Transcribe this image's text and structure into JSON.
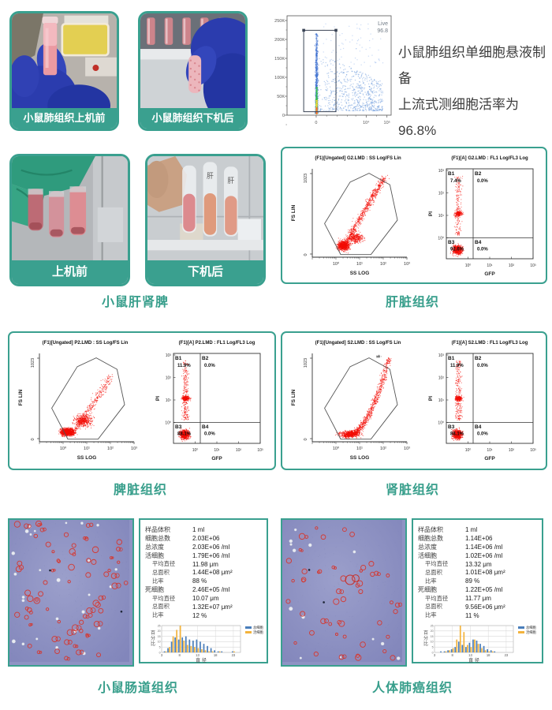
{
  "accent": "#3aa08f",
  "top": {
    "photos": [
      {
        "label": "小鼠肺组织上机前",
        "scene": "lung-before"
      },
      {
        "label": "小鼠肺组织下机后",
        "scene": "lung-after"
      }
    ],
    "description_lines": [
      "小鼠肺组织单细胞悬液制备",
      "上流式测细胞活率为96.8%"
    ]
  },
  "organ_photos": {
    "photos": [
      {
        "label": "上机前",
        "scene": "tubes-before"
      },
      {
        "label": "下机后",
        "scene": "tubes-after"
      }
    ],
    "caption": "小鼠肝肾脾"
  },
  "flow_captions": {
    "liver": "肝脏组织",
    "spleen": "脾脏组织",
    "kidney": "肾脏组织"
  },
  "micro_captions": {
    "intestine": "小鼠肠道组织",
    "lung_cancer": "人体肺癌组织"
  },
  "counter_panels": [
    {
      "id": "intestine",
      "rows": [
        {
          "label": "样品体积",
          "value": "1 ml",
          "indent": 0
        },
        {
          "label": "细胞总数",
          "value": "2.03E+06",
          "indent": 0
        },
        {
          "label": "总浓度",
          "value": "2.03E+06 /ml",
          "indent": 0
        },
        {
          "label": "活细胞",
          "value": "1.79E+06 /ml",
          "indent": 0
        },
        {
          "label": "平均直径",
          "value": "11.98 μm",
          "indent": 1
        },
        {
          "label": "总面积",
          "value": "1.44E+08 μm²",
          "indent": 1
        },
        {
          "label": "比率",
          "value": "88 %",
          "indent": 1
        },
        {
          "label": "死细胞",
          "value": "2.46E+05 /ml",
          "indent": 0
        },
        {
          "label": "平均直径",
          "value": "10.07 μm",
          "indent": 1
        },
        {
          "label": "总面积",
          "value": "1.32E+07 μm²",
          "indent": 1
        },
        {
          "label": "比率",
          "value": "12 %",
          "indent": 1
        }
      ]
    },
    {
      "id": "lung_cancer",
      "rows": [
        {
          "label": "样品体积",
          "value": "1 ml",
          "indent": 0
        },
        {
          "label": "细胞总数",
          "value": "1.14E+06",
          "indent": 0
        },
        {
          "label": "总浓度",
          "value": "1.14E+06 /ml",
          "indent": 0
        },
        {
          "label": "活细胞",
          "value": "1.02E+06 /ml",
          "indent": 0
        },
        {
          "label": "平均直径",
          "value": "13.32 μm",
          "indent": 1
        },
        {
          "label": "总面积",
          "value": "1.01E+08 μm²",
          "indent": 1
        },
        {
          "label": "比率",
          "value": "89 %",
          "indent": 1
        },
        {
          "label": "死细胞",
          "value": "1.22E+05 /ml",
          "indent": 0
        },
        {
          "label": "平均直径",
          "value": "11.77 μm",
          "indent": 1
        },
        {
          "label": "总面积",
          "value": "9.56E+06 μm²",
          "indent": 1
        },
        {
          "label": "比率",
          "value": "11 %",
          "indent": 1
        }
      ]
    }
  ],
  "micro_images": [
    {
      "id": "intestine",
      "red_cells": 74,
      "white_cells": 26,
      "big_cell": false,
      "seed": 11
    },
    {
      "id": "lung_cancer",
      "red_cells": 50,
      "white_cells": 13,
      "big_cell": true,
      "seed": 29
    }
  ],
  "chart_data": [
    {
      "id": "live_gate",
      "type": "scatter",
      "title": "Live 96.8",
      "gate_label": "Live",
      "gate_percent": "96.8",
      "yticks": [
        "250K",
        "200K",
        "150K",
        "100K",
        "50K",
        "0"
      ],
      "xticks": [
        "0",
        "10⁴",
        "10⁵"
      ],
      "gate_rect": [
        0.16,
        0.02,
        0.47,
        0.88
      ],
      "note": "density scatter of lung single-cell suspension, Live gate = 96.8%"
    },
    {
      "id": "liver",
      "type": "flow",
      "scatter_title": "(F1)[Ungated] G2.LMD : SS Log/FS Lin",
      "scatter_xlabel": "SS LOG",
      "scatter_ylabel": "FS LIN",
      "scatter_yticks": [
        "1023",
        "0"
      ],
      "scatter_xticks": [
        "10⁰",
        "10¹",
        "10²",
        "10³"
      ],
      "quad_title": "(F1)[A] G2.LMD : FL1 Log/FL3 Log",
      "quad_xlabel": "GFP",
      "quad_ylabel": "PI",
      "quad_xticks": [
        "10⁰",
        "10¹",
        "10²",
        "10³"
      ],
      "quad_yticks": [
        "10³",
        "10²",
        "10¹",
        "10⁰"
      ],
      "quadrants": [
        {
          "name": "B1",
          "value": "7.4%"
        },
        {
          "name": "B2",
          "value": "0.0%"
        },
        {
          "name": "B3",
          "value": "92.6%"
        },
        {
          "name": "B4",
          "value": "0.0%"
        }
      ],
      "gate_polygon": [
        [
          0.3,
          0.03
        ],
        [
          0.13,
          0.38
        ],
        [
          0.4,
          0.85
        ],
        [
          0.6,
          0.95
        ],
        [
          0.82,
          0.82
        ],
        [
          0.9,
          0.42
        ],
        [
          0.62,
          0.03
        ]
      ],
      "clusters": [
        {
          "n": 800,
          "cx": 0.33,
          "cy": 0.13,
          "sx": 0.085,
          "sy": 0.075
        },
        {
          "n": 350,
          "cx": 0.45,
          "cy": 0.22,
          "sx": 0.12,
          "sy": 0.09
        }
      ],
      "arm": {
        "n": 650,
        "x0": 0.33,
        "y0": 0.12,
        "dx": 0.43,
        "dy": 0.78,
        "pow": 1.0,
        "jx": 0.05,
        "jy": 0.05
      },
      "top_cluster": false,
      "b3_n": 700,
      "col_n": 180,
      "band_n": 220
    },
    {
      "id": "spleen",
      "type": "flow",
      "scatter_title": "(F1)[Ungated] P2.LMD : SS Log/FS Lin",
      "scatter_xlabel": "SS LOG",
      "scatter_ylabel": "FS LIN",
      "scatter_yticks": [
        "1023",
        "0"
      ],
      "scatter_xticks": [
        "10⁰",
        "10¹",
        "10²",
        "10³"
      ],
      "quad_title": "(F1)[A] P2.LMD : FL1 Log/FL3 Log",
      "quad_xlabel": "GFP",
      "quad_ylabel": "PI",
      "quad_xticks": [
        "10⁰",
        "10¹",
        "10²",
        "10³"
      ],
      "quad_yticks": [
        "10³",
        "10²",
        "10¹",
        "10⁰"
      ],
      "quadrants": [
        {
          "name": "B1",
          "value": "11.9%"
        },
        {
          "name": "B2",
          "value": "0.0%"
        },
        {
          "name": "B3",
          "value": "88.1%"
        },
        {
          "name": "B4",
          "value": "0.0%"
        }
      ],
      "gate_polygon": [
        [
          0.3,
          0.03
        ],
        [
          0.13,
          0.38
        ],
        [
          0.4,
          0.85
        ],
        [
          0.6,
          0.95
        ],
        [
          0.82,
          0.82
        ],
        [
          0.9,
          0.42
        ],
        [
          0.62,
          0.03
        ]
      ],
      "clusters": [
        {
          "n": 1200,
          "cx": 0.3,
          "cy": 0.11,
          "sx": 0.1,
          "sy": 0.06
        },
        {
          "n": 450,
          "cx": 0.46,
          "cy": 0.24,
          "sx": 0.13,
          "sy": 0.1
        }
      ],
      "arm": {
        "n": 300,
        "x0": 0.38,
        "y0": 0.15,
        "dx": 0.38,
        "dy": 0.6,
        "pow": 1.1,
        "jx": 0.06,
        "jy": 0.06
      },
      "top_cluster": false,
      "b3_n": 750,
      "col_n": 260,
      "band_n": 320
    },
    {
      "id": "kidney",
      "type": "flow",
      "scatter_title": "(F1)[Ungated] S2.LMD : SS Log/FS Lin",
      "scatter_xlabel": "SS LOG",
      "scatter_ylabel": "FS LIN",
      "scatter_yticks": [
        "1023",
        "0"
      ],
      "scatter_xticks": [
        "10⁰",
        "10¹",
        "10²",
        "10³"
      ],
      "quad_title": "(F1)[A] S2.LMD : FL1 Log/FL3 Log",
      "quad_xlabel": "GFP",
      "quad_ylabel": "PI",
      "quad_xticks": [
        "10⁰",
        "10¹",
        "10²",
        "10³"
      ],
      "quad_yticks": [
        "10³",
        "10²",
        "10¹",
        "10⁰"
      ],
      "quadrants": [
        {
          "name": "B1",
          "value": "11.9%"
        },
        {
          "name": "B2",
          "value": "0.0%"
        },
        {
          "name": "B3",
          "value": "88.1%"
        },
        {
          "name": "B4",
          "value": "0.0%"
        }
      ],
      "gate_polygon": [
        [
          0.3,
          0.03
        ],
        [
          0.13,
          0.38
        ],
        [
          0.4,
          0.85
        ],
        [
          0.6,
          0.95
        ],
        [
          0.82,
          0.82
        ],
        [
          0.9,
          0.42
        ],
        [
          0.62,
          0.03
        ]
      ],
      "clusters": [
        {
          "n": 500,
          "cx": 0.4,
          "cy": 0.09,
          "sx": 0.15,
          "sy": 0.05
        }
      ],
      "arm": {
        "n": 850,
        "x0": 0.34,
        "y0": 0.06,
        "dx": 0.47,
        "dy": 0.88,
        "pow": 2.1,
        "jx": 0.045,
        "jy": 0.04
      },
      "top_cluster": true,
      "b3_n": 700,
      "col_n": 240,
      "band_n": 260
    },
    {
      "id": "intestine_hist",
      "type": "bar",
      "xlabel": "直 径",
      "ylabel": "百分比",
      "ylim": [
        0,
        25
      ],
      "yticks": [
        0,
        5,
        10,
        15,
        20,
        25
      ],
      "xticks": [
        3,
        8,
        13,
        18,
        23
      ],
      "categories": [
        4,
        5,
        6,
        7,
        8,
        9,
        10,
        11,
        12,
        13,
        14,
        15,
        16,
        17,
        18,
        19,
        20,
        21,
        22,
        23
      ],
      "series": [
        {
          "name": "总细胞",
          "color": "#4a7ebb",
          "values": [
            1,
            4,
            10,
            14,
            12,
            14,
            15,
            12,
            11,
            12,
            10,
            8,
            6,
            4,
            2,
            1,
            1,
            0,
            0,
            1
          ]
        },
        {
          "name": "活细胞",
          "color": "#f3b33c",
          "values": [
            1,
            5,
            15,
            21,
            25,
            11,
            7,
            6,
            5,
            4,
            3,
            2,
            1,
            1,
            0,
            1,
            0,
            0,
            0,
            1
          ]
        }
      ]
    },
    {
      "id": "lung_hist",
      "type": "bar",
      "xlabel": "直 径",
      "ylabel": "百分比",
      "ylim": [
        0,
        25
      ],
      "yticks": [
        0,
        5,
        10,
        15,
        20,
        25
      ],
      "xticks": [
        3,
        8,
        13,
        18,
        23
      ],
      "categories": [
        4,
        5,
        6,
        7,
        8,
        9,
        10,
        11,
        12,
        13,
        14,
        15,
        16,
        17,
        18,
        19,
        20,
        21,
        22,
        23
      ],
      "series": [
        {
          "name": "总细胞",
          "color": "#4a7ebb",
          "values": [
            0,
            1,
            1,
            2,
            3,
            5,
            10,
            7,
            5,
            9,
            12,
            11,
            8,
            6,
            3,
            2,
            1,
            0,
            0,
            0
          ]
        },
        {
          "name": "活细胞",
          "color": "#f3b33c",
          "values": [
            0,
            0,
            1,
            2,
            4,
            12,
            25,
            19,
            7,
            5,
            12,
            8,
            4,
            2,
            1,
            1,
            0,
            0,
            0,
            0
          ]
        }
      ]
    }
  ]
}
